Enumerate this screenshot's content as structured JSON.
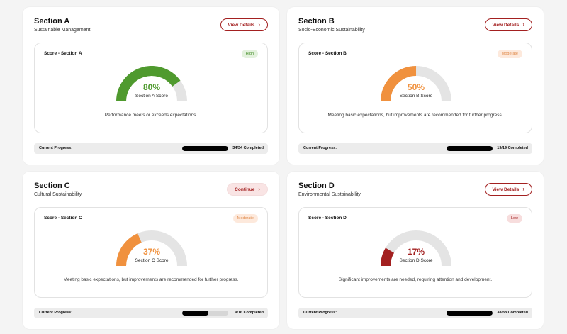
{
  "cards": [
    {
      "title": "Section A",
      "subtitle": "Sustainable Management",
      "action_label": "View Details",
      "action_style": "outline",
      "score_title": "Score - Section A",
      "badge": "High",
      "badge_level": "high",
      "percent": 80,
      "percent_label": "80%",
      "gauge_label": "Section A Score",
      "gauge_color": "#4f9a2e",
      "description": "Performance meets or exceeds expectations.",
      "progress_label": "Current Progress:",
      "progress_fraction": 1.0,
      "progress_text": "34/34 Completed"
    },
    {
      "title": "Section B",
      "subtitle": "Socio-Economic Sustainability",
      "action_label": "View Details",
      "action_style": "outline",
      "score_title": "Score - Section B",
      "badge": "Moderate",
      "badge_level": "moderate",
      "percent": 50,
      "percent_label": "50%",
      "gauge_label": "Section B Score",
      "gauge_color": "#f0913e",
      "description": "Meeting basic expectations, but improvements are recommended for further progress.",
      "progress_label": "Current Progress:",
      "progress_fraction": 1.0,
      "progress_text": "19/19 Completed"
    },
    {
      "title": "Section C",
      "subtitle": "Cultural Sustainability",
      "action_label": "Continue",
      "action_style": "soft",
      "score_title": "Score - Section C",
      "badge": "Moderate",
      "badge_level": "moderate",
      "percent": 37,
      "percent_label": "37%",
      "gauge_label": "Section C Score",
      "gauge_color": "#f0913e",
      "description": "Meeting basic expectations, but improvements are recommended for further progress.",
      "progress_label": "Current Progress:",
      "progress_fraction": 0.5625,
      "progress_text": "9/16 Completed"
    },
    {
      "title": "Section D",
      "subtitle": "Environmental Sustainability",
      "action_label": "View Details",
      "action_style": "outline",
      "score_title": "Score - Section D",
      "badge": "Low",
      "badge_level": "low",
      "percent": 17,
      "percent_label": "17%",
      "gauge_label": "Section D Score",
      "gauge_color": "#a32020",
      "description": "Significant improvements are needed, requiring attention and development.",
      "progress_label": "Current Progress:",
      "progress_fraction": 1.0,
      "progress_text": "38/38 Completed"
    }
  ],
  "colors": {
    "gauge_track": "#e4e4e4",
    "accent": "#a32020"
  },
  "icons": {
    "action": "chevron-right-icon"
  }
}
